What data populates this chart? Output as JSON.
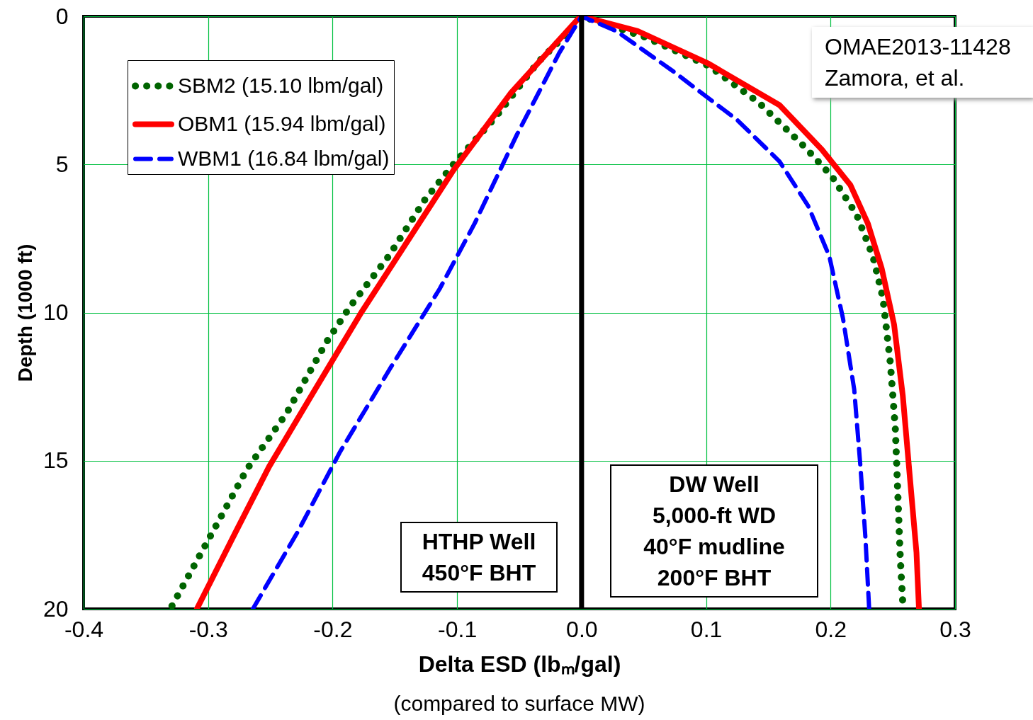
{
  "chart_data": {
    "type": "line",
    "xlabel": "Delta ESD (lbₘ/gal)",
    "ylabel": "Depth (1000 ft)",
    "xlim": [
      -0.4,
      0.3
    ],
    "xticks": [
      {
        "value": -0.4,
        "label": "-0.4"
      },
      {
        "value": -0.3,
        "label": "-0.3"
      },
      {
        "value": -0.2,
        "label": "-0.2"
      },
      {
        "value": -0.1,
        "label": "-0.1"
      },
      {
        "value": 0,
        "label": "0.0"
      },
      {
        "value": 0.1,
        "label": "0.1"
      },
      {
        "value": 0.2,
        "label": "0.2"
      },
      {
        "value": 0.3,
        "label": "0.3"
      }
    ],
    "ylim": [
      20,
      0
    ],
    "yticks": [
      0,
      5,
      10,
      15,
      20
    ],
    "grid": true,
    "legend": "top left",
    "ref_lines": [
      {
        "axis": "x",
        "value": 0,
        "color": "#000000"
      }
    ],
    "annotations": [
      "OMAE2013-11428\nZamora, et al.",
      "HTHP Well\n450°F BHT",
      "DW Well\n5,000-ft WD\n40°F mudline\n200°F BHT",
      "(compared to surface MW)"
    ],
    "series": [
      {
        "name": "SBM2 (15.10 lbm/gal)",
        "color": "#006400",
        "line_style": "dotted",
        "x": [
          -0.329,
          -0.295,
          -0.269,
          -0.237,
          -0.205,
          -0.186,
          -0.155,
          -0.126,
          -0.103,
          -0.069,
          -0.035,
          -0.005,
          0,
          0.051,
          0.102,
          0.142,
          0.179,
          0.201,
          0.221,
          0.234,
          0.242,
          0.248,
          0.252,
          0.254,
          0.256,
          0.258
        ],
        "values": [
          19.9,
          17.3,
          15.3,
          13.4,
          11.0,
          9.8,
          8.1,
          6.2,
          5.0,
          3.4,
          1.55,
          0.3,
          0,
          0.7,
          1.67,
          2.9,
          4.4,
          5.4,
          6.7,
          8.1,
          9.5,
          11.7,
          13.9,
          16.1,
          18.3,
          19.8
        ]
      },
      {
        "name": "OBM1 (15.94 lbm/gal)",
        "color": "#ff0000",
        "line_style": "solid",
        "x": [
          -0.309,
          -0.279,
          -0.251,
          -0.217,
          -0.177,
          -0.143,
          -0.103,
          -0.057,
          -0.003,
          0,
          0.045,
          0.102,
          0.159,
          0.193,
          0.216,
          0.23,
          0.241,
          0.251,
          0.258,
          0.264,
          0.269,
          0.271
        ],
        "values": [
          20,
          17.5,
          15.2,
          12.8,
          10.0,
          7.8,
          5.2,
          2.6,
          0.1,
          0,
          0.5,
          1.6,
          3.0,
          4.5,
          5.7,
          7.0,
          8.5,
          10.4,
          12.8,
          15.7,
          18.1,
          20
        ]
      },
      {
        "name": "WBM1 (16.84 lbm/gal)",
        "color": "#0000ff",
        "line_style": "dashed",
        "x": [
          -0.264,
          -0.228,
          -0.194,
          -0.154,
          -0.114,
          -0.086,
          -0.052,
          -0.018,
          0,
          0.028,
          0.073,
          0.125,
          0.159,
          0.182,
          0.199,
          0.21,
          0.219,
          0.224,
          0.228,
          0.231
        ],
        "values": [
          20,
          17.4,
          14.7,
          11.9,
          9.2,
          7.0,
          4.0,
          1.24,
          0,
          0.5,
          1.84,
          3.5,
          4.9,
          6.4,
          8.1,
          10.2,
          12.6,
          15.2,
          17.6,
          20
        ]
      }
    ]
  }
}
